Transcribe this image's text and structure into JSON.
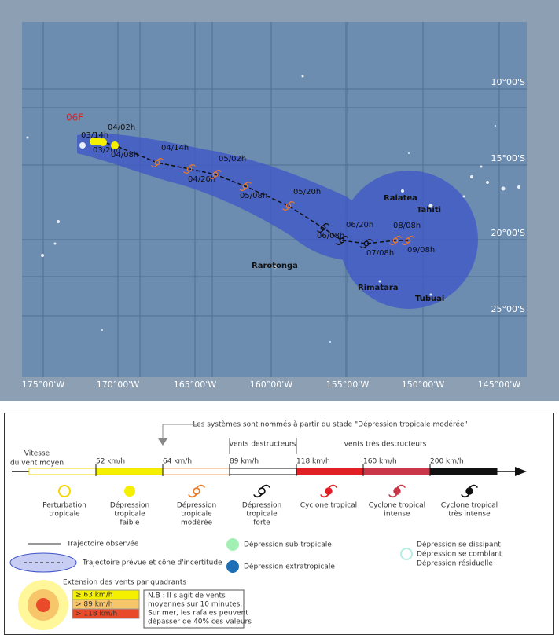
{
  "map": {
    "storm_name": "06F",
    "lon_labels": [
      "175°00'W",
      "170°00'W",
      "165°00'W",
      "160°00'W",
      "155°00'W",
      "150°00'W",
      "145°00'W"
    ],
    "lat_labels": [
      "10°00'S",
      "15°00'S",
      "20°00'S",
      "25°00'S"
    ],
    "track_labels": [
      "03/14h",
      "03/20h",
      "04/02h",
      "04/08h",
      "04/14h",
      "04/20h",
      "05/02h",
      "05/08h",
      "05/20h",
      "06/08h",
      "06/20h",
      "07/08h",
      "08/08h",
      "09/08h"
    ],
    "places": [
      "Raiatea",
      "Tahiti",
      "Rarotonga",
      "Rimatara",
      "Tubuai"
    ]
  },
  "legend": {
    "naming_note": "Les systèmes sont nommés à partir du stade \"Dépression tropicale modérée\"",
    "wind_zones": [
      "vents destructeurs",
      "vents très destructeurs"
    ],
    "speed_title": [
      "Vitesse",
      "du vent moyen"
    ],
    "speeds": [
      "52 km/h",
      "64 km/h",
      "89 km/h",
      "118 km/h",
      "160 km/h",
      "200 km/h"
    ],
    "categories": [
      [
        "Perturbation",
        "tropicale"
      ],
      [
        "Dépression",
        "tropicale",
        "faible"
      ],
      [
        "Dépression",
        "tropicale",
        "modérée"
      ],
      [
        "Dépression",
        "tropicale",
        "forte"
      ],
      [
        "Cyclone tropical"
      ],
      [
        "Cyclone tropical",
        "intense"
      ],
      [
        "Cyclone tropical",
        "très intense"
      ]
    ],
    "observed_track": "Trajectoire observée",
    "forecast_track": "Trajectoire prévue et cône d'incertitude",
    "subtropical": "Dépression sub-tropicale",
    "extratropical": "Dépression extratropicale",
    "dissipating": [
      "Dépression se dissipant",
      "Dépression se comblant",
      "Dépression résiduelle"
    ],
    "quadrants_title": "Extension des vents par quadrants",
    "quadrants": [
      "≥ 63 km/h",
      "> 89 km/h",
      "> 118 km/h"
    ],
    "note": [
      "N.B : Il s'agit de vents",
      "moyennes sur 10 minutes.",
      "Sur mer, les rafales peuvent",
      "dépasser de 40% ces valeurs"
    ]
  }
}
